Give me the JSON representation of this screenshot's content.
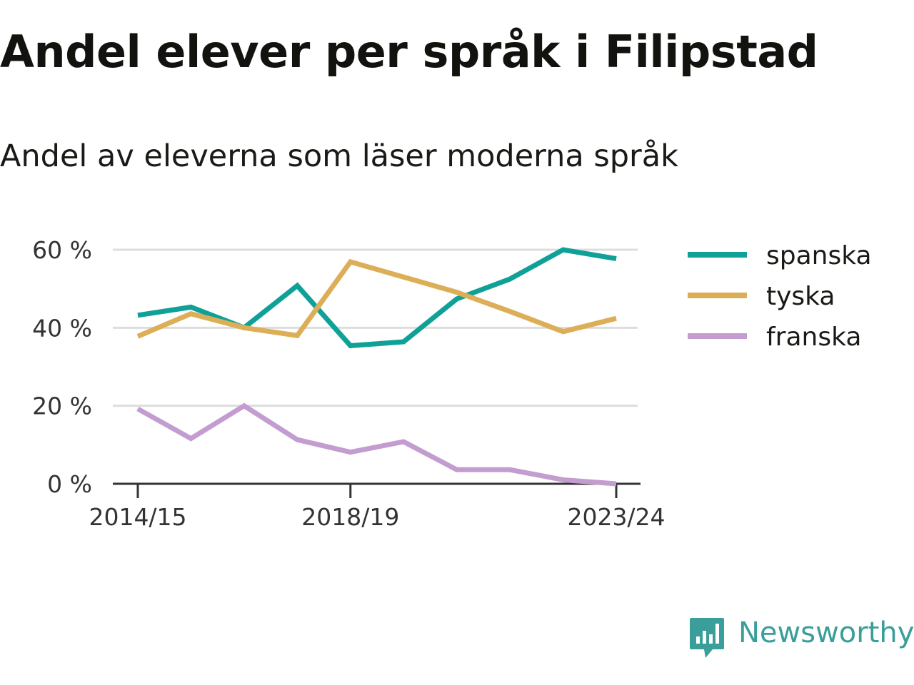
{
  "title": "Andel elever per språk i Filipstad",
  "subtitle": "Andel av eleverna som läser moderna språk",
  "brand": {
    "name": "Newsworthy",
    "icon": "newsworthy-logo-icon",
    "color": "#3a9e9a"
  },
  "chart_data": {
    "type": "line",
    "title": "",
    "xlabel": "",
    "ylabel": "",
    "x": [
      "2014/15",
      "2015/16",
      "2016/17",
      "2017/18",
      "2018/19",
      "2019/20",
      "2020/21",
      "2021/22",
      "2022/23",
      "2023/24"
    ],
    "x_tick_labels": [
      "2014/15",
      "2018/19",
      "2023/24"
    ],
    "y_ticks": [
      0,
      20,
      40,
      60
    ],
    "y_tick_labels": [
      "0 %",
      "20 %",
      "40 %",
      "60 %"
    ],
    "ylim": [
      0,
      60
    ],
    "grid": true,
    "legend_placement": "right",
    "series": [
      {
        "name": "spanska",
        "color": "#0fa197",
        "values": [
          43.2,
          45.3,
          40.0,
          50.8,
          35.4,
          36.4,
          47.4,
          52.5,
          60.0,
          57.7
        ]
      },
      {
        "name": "tyska",
        "color": "#dcae57",
        "values": [
          37.8,
          43.6,
          40.0,
          38.0,
          56.9,
          53.0,
          49.1,
          44.2,
          39.0,
          42.4
        ]
      },
      {
        "name": "franska",
        "color": "#c39dd0",
        "values": [
          19.2,
          11.6,
          20.0,
          11.3,
          8.1,
          10.8,
          3.6,
          3.6,
          1.0,
          0.0
        ]
      }
    ]
  }
}
